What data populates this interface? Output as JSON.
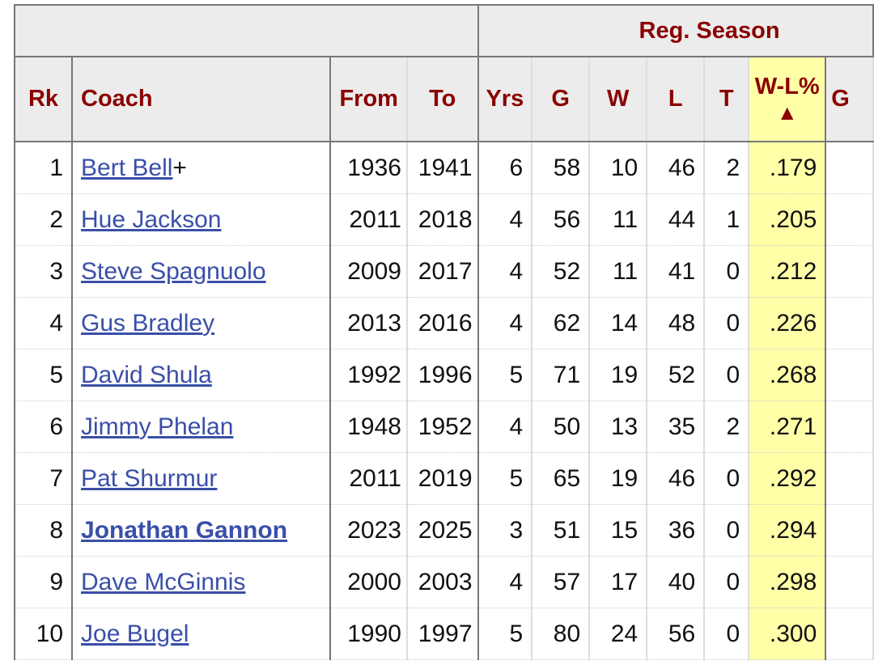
{
  "group_header": "Reg. Season",
  "columns": {
    "rk": "Rk",
    "coach": "Coach",
    "from": "From",
    "to": "To",
    "yrs": "Yrs",
    "g": "G",
    "w": "W",
    "l": "L",
    "t": "T",
    "wl": "W-L%",
    "sort_indicator": "▲",
    "g2": "G"
  },
  "rows": [
    {
      "rk": "1",
      "coach": "Bert Bell",
      "suffix": "+",
      "from": "1936",
      "to": "1941",
      "yrs": "6",
      "g": "58",
      "w": "10",
      "l": "46",
      "t": "2",
      "wl": ".179"
    },
    {
      "rk": "2",
      "coach": "Hue Jackson",
      "suffix": "",
      "from": "2011",
      "to": "2018",
      "yrs": "4",
      "g": "56",
      "w": "11",
      "l": "44",
      "t": "1",
      "wl": ".205"
    },
    {
      "rk": "3",
      "coach": "Steve Spagnuolo",
      "suffix": "",
      "from": "2009",
      "to": "2017",
      "yrs": "4",
      "g": "52",
      "w": "11",
      "l": "41",
      "t": "0",
      "wl": ".212"
    },
    {
      "rk": "4",
      "coach": "Gus Bradley",
      "suffix": "",
      "from": "2013",
      "to": "2016",
      "yrs": "4",
      "g": "62",
      "w": "14",
      "l": "48",
      "t": "0",
      "wl": ".226"
    },
    {
      "rk": "5",
      "coach": "David Shula",
      "suffix": "",
      "from": "1992",
      "to": "1996",
      "yrs": "5",
      "g": "71",
      "w": "19",
      "l": "52",
      "t": "0",
      "wl": ".268"
    },
    {
      "rk": "6",
      "coach": "Jimmy Phelan",
      "suffix": "",
      "from": "1948",
      "to": "1952",
      "yrs": "4",
      "g": "50",
      "w": "13",
      "l": "35",
      "t": "2",
      "wl": ".271"
    },
    {
      "rk": "7",
      "coach": "Pat Shurmur",
      "suffix": "",
      "from": "2011",
      "to": "2019",
      "yrs": "5",
      "g": "65",
      "w": "19",
      "l": "46",
      "t": "0",
      "wl": ".292"
    },
    {
      "rk": "8",
      "coach": "Jonathan Gannon",
      "suffix": "",
      "from": "2023",
      "to": "2025",
      "yrs": "3",
      "g": "51",
      "w": "15",
      "l": "36",
      "t": "0",
      "wl": ".294",
      "bold": true
    },
    {
      "rk": "9",
      "coach": "Dave McGinnis",
      "suffix": "",
      "from": "2000",
      "to": "2003",
      "yrs": "4",
      "g": "57",
      "w": "17",
      "l": "40",
      "t": "0",
      "wl": ".298"
    },
    {
      "rk": "10",
      "coach": "Joe Bugel",
      "suffix": "",
      "from": "1990",
      "to": "1997",
      "yrs": "5",
      "g": "80",
      "w": "24",
      "l": "56",
      "t": "0",
      "wl": ".300"
    }
  ]
}
